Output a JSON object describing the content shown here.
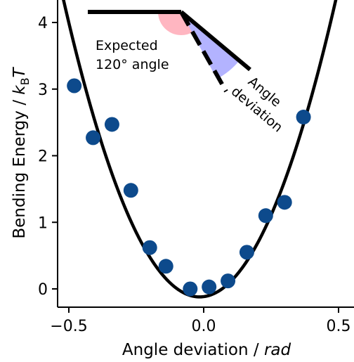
{
  "chart_data": {
    "type": "scatter",
    "xlabel": "Angle deviation / ",
    "xlabel_italic": "rad",
    "ylabel_prefix": "Bending Energy / ",
    "ylabel_k": "k",
    "ylabel_sub": "B",
    "ylabel_T": "T",
    "xlim": [
      -0.55,
      0.5
    ],
    "ylim": [
      -0.15,
      4.25
    ],
    "xticks": [
      -0.5,
      0.0,
      0.5
    ],
    "xtick_labels": [
      "−0.5",
      "0.0",
      "0.5"
    ],
    "yticks": [
      0,
      1,
      2,
      3,
      4
    ],
    "ytick_labels": [
      "0",
      "1",
      "2",
      "3",
      "4"
    ],
    "grid": false,
    "points": {
      "color": "#0d4a8c",
      "x": [
        -0.48,
        -0.41,
        -0.34,
        -0.27,
        -0.2,
        -0.14,
        -0.05,
        0.02,
        0.09,
        0.16,
        0.23,
        0.3,
        0.37
      ],
      "y": [
        3.05,
        2.27,
        2.47,
        1.48,
        0.62,
        0.34,
        0.0,
        0.03,
        0.12,
        0.55,
        1.1,
        1.3,
        2.58
      ]
    },
    "fit": {
      "color": "#000000",
      "x0": -0.015,
      "a": 17.5,
      "c": -0.12
    },
    "annotations": {
      "expected_line1": "Expected",
      "expected_line2": "120° angle",
      "deviation_line1": "Angle",
      "deviation_line2": "deviation",
      "expected_color": "#ffb6c1",
      "deviation_color": "#b3b3ff"
    }
  }
}
